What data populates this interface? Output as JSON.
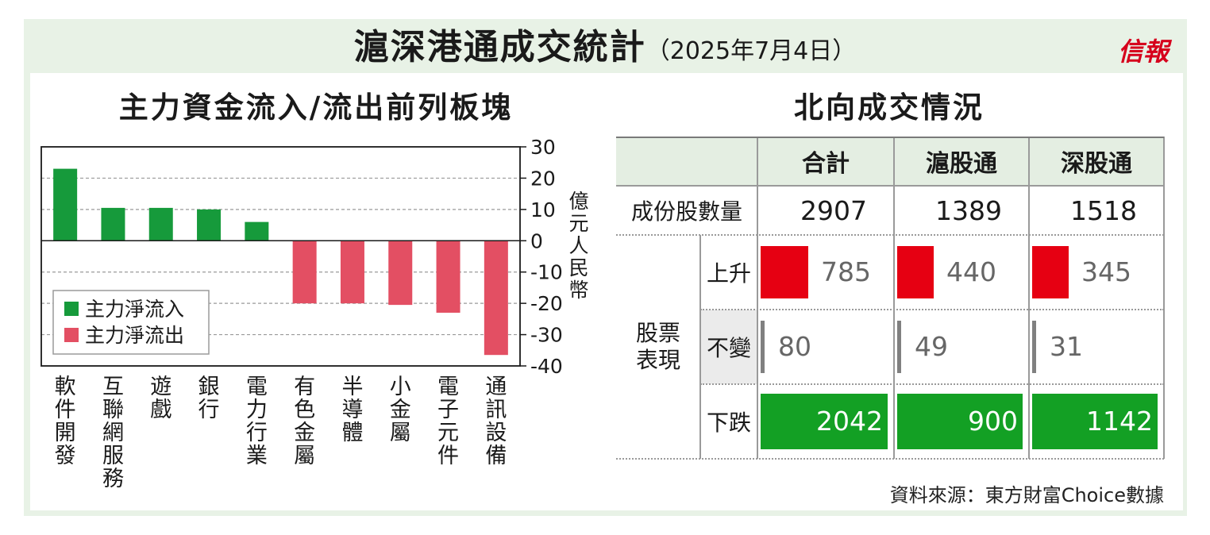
{
  "header": {
    "title": "滬深港通成交統計",
    "date": "（2025年7月4日）",
    "logo": "信報"
  },
  "left_title": "主力資金流入/流出前列板塊",
  "right_title": "北向成交情況",
  "colors": {
    "inflow": "#169a3b",
    "outflow": "#e34f63",
    "rise": "#e60012",
    "flat": "#808080",
    "fall": "#13a024"
  },
  "chart_data": {
    "type": "bar",
    "categories": [
      "軟件開發",
      "互聯網服務",
      "遊戲",
      "銀行",
      "電力行業",
      "有色金屬",
      "半導體",
      "小金屬",
      "電子元件",
      "通訊設備"
    ],
    "values": [
      23,
      10.5,
      10.5,
      10,
      6,
      -20,
      -20,
      -20.5,
      -23,
      -36.5
    ],
    "ylabel": "億元人民幣",
    "ylim": [
      -40,
      30
    ],
    "yticks": [
      30,
      20,
      10,
      0,
      -10,
      -20,
      -30,
      -40
    ],
    "legend": [
      {
        "name": "主力淨流入",
        "color": "#169a3b"
      },
      {
        "name": "主力淨流出",
        "color": "#e34f63"
      }
    ],
    "legend_position": "bottom-left",
    "grid": true
  },
  "table": {
    "columns": [
      "合計",
      "滬股通",
      "深股通"
    ],
    "constituents_label": "成份股數量",
    "constituents": [
      "2907",
      "1389",
      "1518"
    ],
    "performance_label": "股票表現",
    "rows": [
      {
        "label": "上升",
        "values": [
          785,
          440,
          345
        ]
      },
      {
        "label": "不變",
        "values": [
          80,
          49,
          31
        ]
      },
      {
        "label": "下跌",
        "values": [
          2042,
          900,
          1142
        ]
      }
    ]
  },
  "source": "資料來源：東方財富Choice數據"
}
